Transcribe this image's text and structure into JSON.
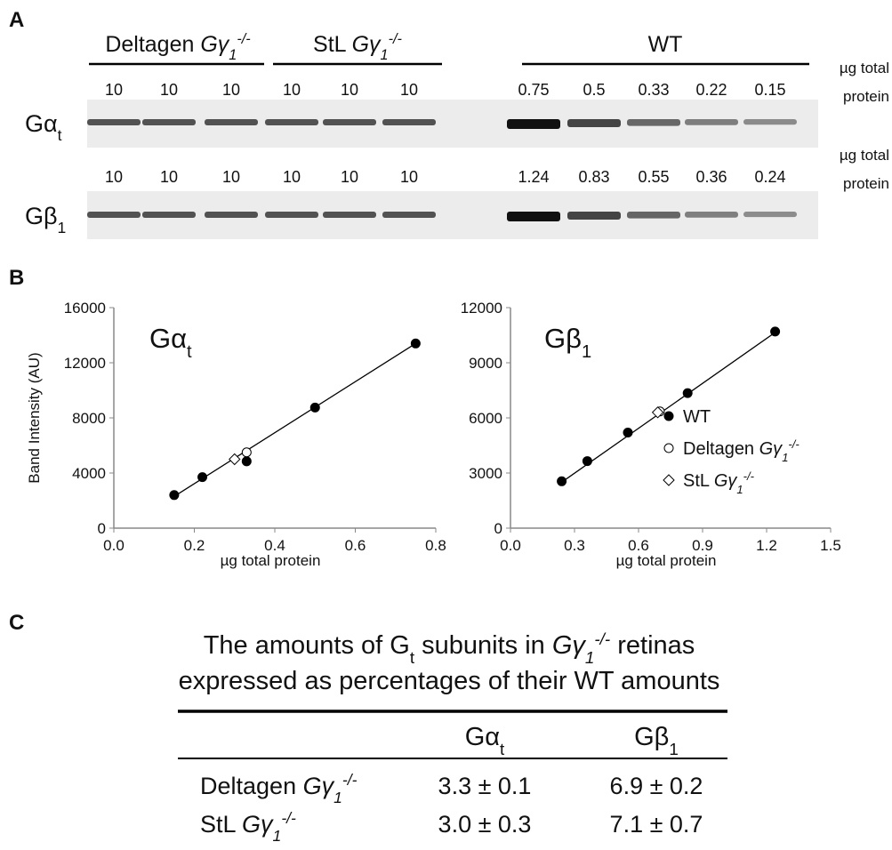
{
  "panel_a": {
    "label": "A",
    "groups": [
      [
        "Deltagen ",
        "Gγ",
        "1",
        "-/-"
      ],
      [
        "StL ",
        "Gγ",
        "1",
        "-/-"
      ],
      [
        "WT"
      ]
    ],
    "unit_note": [
      "µg total",
      "protein"
    ],
    "blots": [
      {
        "protein": [
          "Gα",
          "t"
        ],
        "loads": [
          10,
          10,
          10,
          10,
          10,
          10,
          0.75,
          0.5,
          0.33,
          0.22,
          0.15
        ]
      },
      {
        "protein": [
          "Gβ",
          "1"
        ],
        "loads": [
          10,
          10,
          10,
          10,
          10,
          10,
          1.24,
          0.83,
          0.55,
          0.36,
          0.24
        ]
      }
    ]
  },
  "panel_b_label": "B",
  "chart_data": [
    {
      "type": "scatter",
      "title": [
        "Gα",
        "t"
      ],
      "ylabel": "Band Intensity (AU)",
      "xlabel": "µg total protein",
      "xlim": [
        0,
        0.8
      ],
      "xticks": [
        {
          "value": 0,
          "label": "0.0"
        },
        0.2,
        0.4,
        0.6,
        0.8
      ],
      "ylim": [
        0,
        16000
      ],
      "yticks": [
        0,
        4000,
        8000,
        12000,
        16000
      ],
      "grid": false,
      "legend": false,
      "fit": {
        "x": [
          0.15,
          0.75
        ],
        "y": [
          2300,
          13400
        ]
      },
      "series": [
        {
          "name": [
            "WT"
          ],
          "marker": "circle",
          "filled": true,
          "color": "#000000",
          "x": [
            0.15,
            0.22,
            0.33,
            0.5,
            0.75
          ],
          "values": [
            2400,
            3700,
            4850,
            8750,
            13400
          ]
        },
        {
          "name": [
            "Deltagen ",
            "Gγ",
            "1",
            "-/-"
          ],
          "marker": "circle",
          "filled": false,
          "color": "#000000",
          "x": [
            0.33
          ],
          "values": [
            5500
          ]
        },
        {
          "name": [
            "StL ",
            "Gγ",
            "1",
            "-/-"
          ],
          "marker": "diamond",
          "filled": false,
          "color": "#000000",
          "x": [
            0.3
          ],
          "values": [
            5000
          ]
        }
      ]
    },
    {
      "type": "scatter",
      "title": [
        "Gβ",
        "1"
      ],
      "xlabel": "µg total protein",
      "xlim": [
        0,
        1.5
      ],
      "xticks": [
        {
          "value": 0,
          "label": "0.0"
        },
        0.3,
        0.6,
        0.9,
        1.2,
        1.5
      ],
      "ylim": [
        0,
        12000
      ],
      "yticks": [
        0,
        3000,
        6000,
        9000,
        12000
      ],
      "grid": false,
      "legend": "right",
      "fit": {
        "x": [
          0.24,
          1.24
        ],
        "y": [
          2500,
          10650
        ]
      },
      "series": [
        {
          "name": [
            "WT"
          ],
          "marker": "circle",
          "filled": true,
          "color": "#000000",
          "x": [
            0.24,
            0.36,
            0.55,
            0.83,
            1.24
          ],
          "values": [
            2550,
            3650,
            5200,
            7350,
            10700
          ]
        },
        {
          "name": [
            "Deltagen ",
            "Gγ",
            "1",
            "-/-"
          ],
          "marker": "circle",
          "filled": false,
          "color": "#000000",
          "x": [
            0.7
          ],
          "values": [
            6350
          ]
        },
        {
          "name": [
            "StL ",
            "Gγ",
            "1",
            "-/-"
          ],
          "marker": "diamond",
          "filled": false,
          "color": "#000000",
          "x": [
            0.69
          ],
          "values": [
            6300
          ]
        }
      ]
    }
  ],
  "panel_c": {
    "label": "C",
    "title": [
      [
        "The amounts of G",
        "t",
        " subunits in ",
        "Gγ",
        "1",
        "-/-",
        " retinas"
      ],
      [
        "expressed as percentages of their WT amounts"
      ]
    ],
    "columns": [
      [
        "Gα",
        "t"
      ],
      [
        "Gβ",
        "1"
      ]
    ],
    "rows": [
      {
        "label": [
          "Deltagen ",
          "Gγ",
          "1",
          "-/-"
        ],
        "cells": [
          "3.3 ± 0.1",
          "6.9 ± 0.2"
        ]
      },
      {
        "label": [
          "StL ",
          "Gγ",
          "1",
          "-/-"
        ],
        "cells": [
          "3.0 ± 0.3",
          "7.1 ± 0.7"
        ]
      }
    ]
  }
}
